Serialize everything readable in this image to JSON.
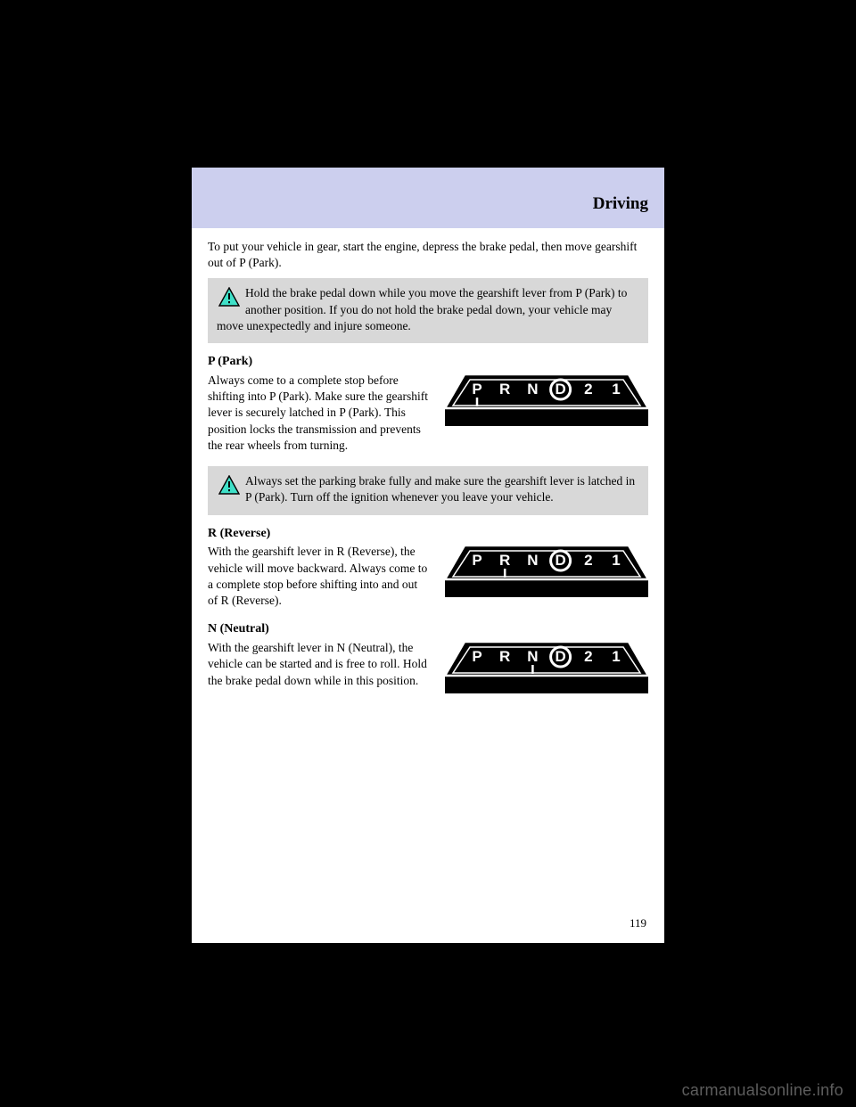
{
  "header": {
    "title": "Driving"
  },
  "intro": "To put your vehicle in gear, start the engine, depress the brake pedal, then move gearshift out of P (Park).",
  "warning1": "Hold the brake pedal down while you move the gearshift lever from P (Park) to another position. If you do not hold the brake pedal down, your vehicle may move unexpectedly and injure someone.",
  "section_p": {
    "title": "P (Park)",
    "body": "Always come to a complete stop before shifting into P (Park). Make sure the gearshift lever is securely latched in P (Park). This position locks the transmission and prevents the rear wheels from turning.",
    "highlight_letter": "P"
  },
  "warning2": "Always set the parking brake fully and make sure the gearshift lever is latched in P (Park). Turn off the ignition whenever you leave your vehicle.",
  "section_r": {
    "title": "R (Reverse)",
    "body": "With the gearshift lever in R (Reverse), the vehicle will move backward. Always come to a complete stop before shifting into and out of R (Reverse).",
    "highlight_letter": "R"
  },
  "section_n": {
    "title": "N (Neutral)",
    "body": "With the gearshift lever in N (Neutral), the vehicle can be started and is free to roll. Hold the brake pedal down while in this position.",
    "highlight_letter": "N"
  },
  "gear_display": {
    "letters": [
      "P",
      "R",
      "N",
      "D",
      "2",
      "1"
    ],
    "circle_letter": "D",
    "bg_color": "#000000",
    "fg_color": "#ffffff"
  },
  "page_number": "119",
  "watermark": "carmanualsonline.info",
  "warning_icon": {
    "fill": "#3fe0c8",
    "stroke": "#000000"
  }
}
